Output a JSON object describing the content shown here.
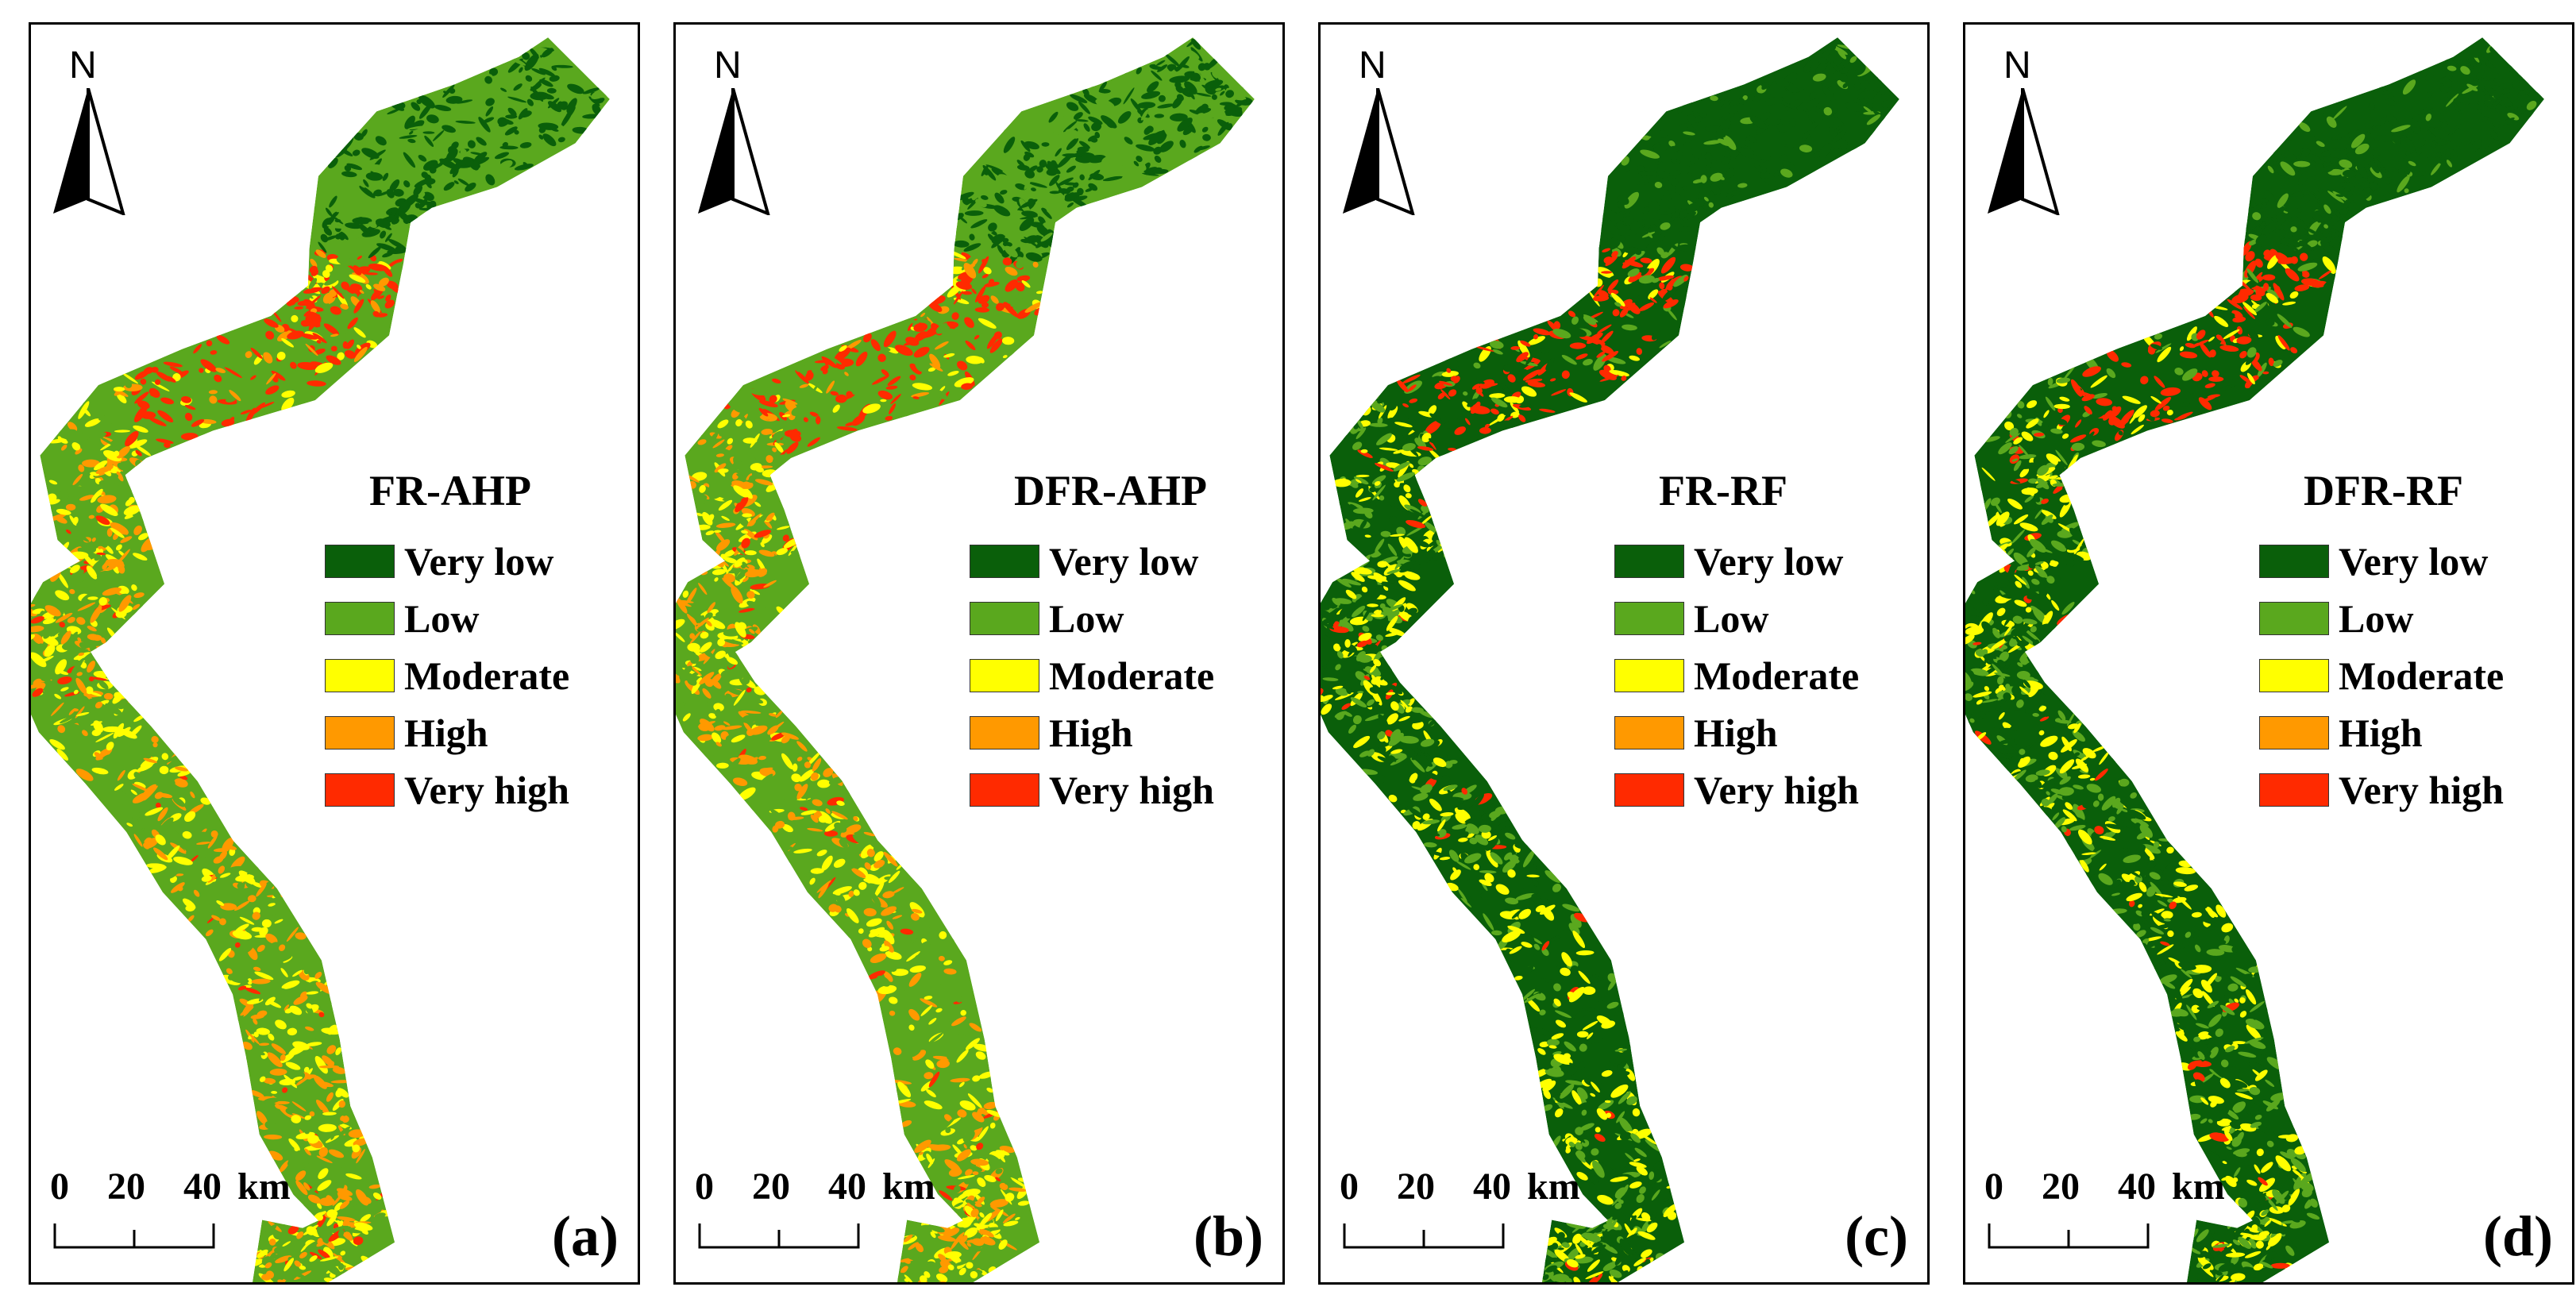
{
  "north_label": "N",
  "scale": {
    "ticks": [
      "0",
      "20",
      "40"
    ],
    "unit": "km"
  },
  "legend": [
    {
      "label": "Very low",
      "color": "#0a5f0a"
    },
    {
      "label": "Low",
      "color": "#5aa81e"
    },
    {
      "label": "Moderate",
      "color": "#ffff00"
    },
    {
      "label": "High",
      "color": "#ff9900"
    },
    {
      "label": "Very high",
      "color": "#ff2a00"
    }
  ],
  "panels": [
    {
      "id": "a",
      "title": "FR-AHP",
      "tag": "(a)",
      "base_class": "Low",
      "dominant": [
        "Moderate",
        "Low",
        "High"
      ],
      "hotspot": "Very high"
    },
    {
      "id": "b",
      "title": "DFR-AHP",
      "tag": "(b)",
      "base_class": "Low",
      "dominant": [
        "Moderate",
        "Low",
        "High"
      ],
      "hotspot": "Very high"
    },
    {
      "id": "c",
      "title": "FR-RF",
      "tag": "(c)",
      "base_class": "Very low",
      "dominant": [
        "Very low",
        "Low",
        "Moderate"
      ],
      "hotspot": "Very high"
    },
    {
      "id": "d",
      "title": "DFR-RF",
      "tag": "(d)",
      "base_class": "Very low",
      "dominant": [
        "Very low",
        "Low",
        "Moderate"
      ],
      "hotspot": "Very high"
    }
  ]
}
